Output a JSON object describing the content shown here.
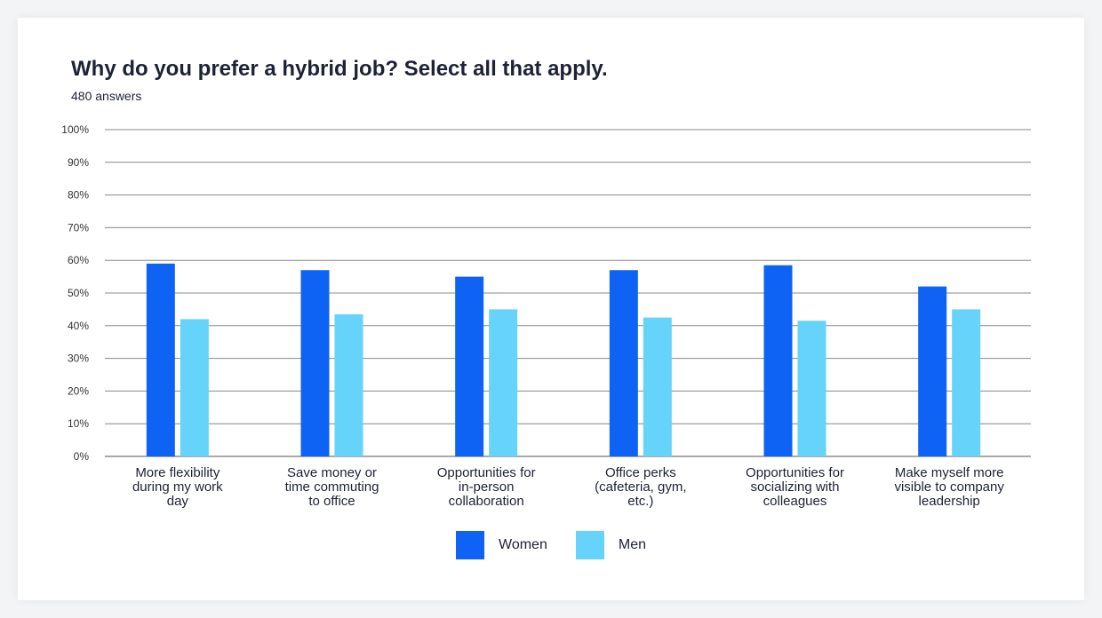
{
  "title": "Why do you prefer a hybrid job? Select all that apply.",
  "subtitle": "480 answers",
  "chart_data": {
    "type": "bar",
    "title": "Why do you prefer a hybrid job? Select all that apply.",
    "subtitle": "480 answers",
    "xlabel": "",
    "ylabel": "",
    "ylim": [
      0,
      100
    ],
    "yticks": [
      "0%",
      "10%",
      "20%",
      "30%",
      "40%",
      "50%",
      "60%",
      "70%",
      "80%",
      "90%",
      "100%"
    ],
    "grid": true,
    "legend_position": "bottom-center",
    "categories": [
      [
        "More flexibility",
        "during my work",
        "day"
      ],
      [
        "Save money or",
        "time commuting",
        "to office"
      ],
      [
        "Opportunities for",
        "in-person",
        "collaboration"
      ],
      [
        "Office perks",
        "(cafeteria, gym,",
        "etc.)"
      ],
      [
        "Opportunities for",
        "socializing with",
        "colleagues"
      ],
      [
        "Make myself more",
        "visible to company",
        "leadership"
      ]
    ],
    "series": [
      {
        "name": "Women",
        "color": "#0e63f4",
        "values": [
          59,
          57,
          55,
          57,
          58.5,
          52
        ]
      },
      {
        "name": "Men",
        "color": "#66d3fa",
        "values": [
          42,
          43.5,
          45,
          42.5,
          41.5,
          45
        ]
      }
    ]
  }
}
